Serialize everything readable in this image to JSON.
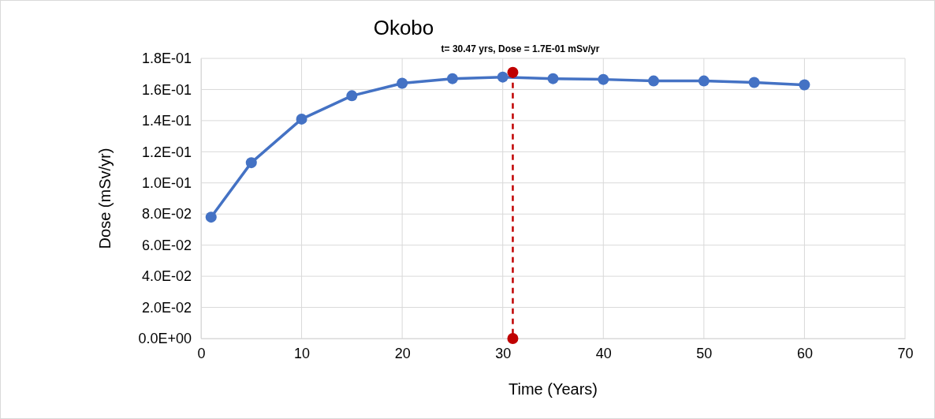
{
  "chart_data": {
    "type": "line",
    "title": "Okobo",
    "xlabel": "Time (Years)",
    "ylabel": "Dose (mSv/yr)",
    "annotations": [
      "t= 30.47 yrs, Dose =  1.7E-01 mSv/yr"
    ],
    "xlim": [
      0,
      70
    ],
    "xticks": [
      0,
      10,
      20,
      30,
      40,
      50,
      60,
      70
    ],
    "ylim": [
      0,
      0.18
    ],
    "yticks": [
      {
        "value": 0,
        "label": "0.0E+00"
      },
      {
        "value": 0.02,
        "label": "2.0E-02"
      },
      {
        "value": 0.04,
        "label": "4.0E-02"
      },
      {
        "value": 0.06,
        "label": "6.0E-02"
      },
      {
        "value": 0.08,
        "label": "8.0E-02"
      },
      {
        "value": 0.1,
        "label": "1.0E-01"
      },
      {
        "value": 0.12,
        "label": "1.2E-01"
      },
      {
        "value": 0.14,
        "label": "1.4E-01"
      },
      {
        "value": 0.16,
        "label": "1.6E-01"
      },
      {
        "value": 0.18,
        "label": "1.8E-01"
      }
    ],
    "grid": true,
    "marker": "circle",
    "series": [
      {
        "color": "#4472c4",
        "x": [
          1,
          5,
          10,
          15,
          20,
          25,
          30,
          35,
          40,
          45,
          50,
          55,
          60
        ],
        "values": [
          0.078,
          0.113,
          0.141,
          0.156,
          0.164,
          0.167,
          0.168,
          0.167,
          0.1665,
          0.1655,
          0.1655,
          0.1645,
          0.163
        ],
        "line_style": "solid"
      },
      {
        "color": "#c00000",
        "x": [
          31,
          31
        ],
        "values": [
          0.171,
          0
        ],
        "line_style": "dashed"
      }
    ]
  }
}
